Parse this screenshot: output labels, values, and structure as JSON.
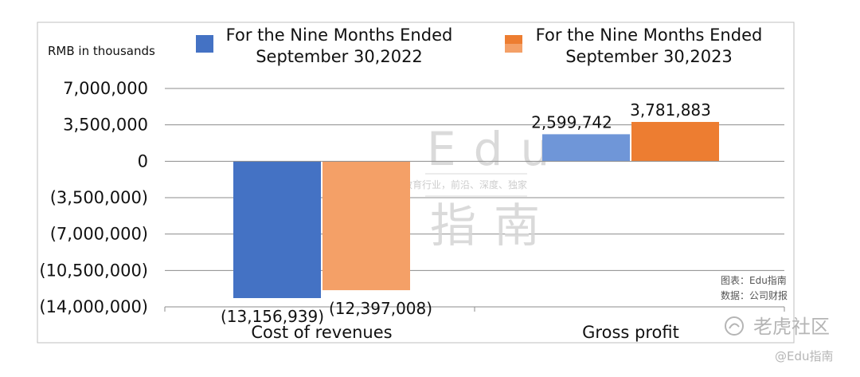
{
  "chart_data": {
    "type": "bar",
    "unit_label": "RMB in thousands",
    "categories": [
      "Cost of revenues",
      "Gross profit"
    ],
    "series": [
      {
        "name": "For the Nine Months Ended September 30,2022",
        "name_lines": [
          "For the Nine Months Ended",
          "September 30,2022"
        ],
        "color": "#4472c4",
        "values": [
          -13156939,
          2599742
        ],
        "labels": [
          "(13,156,939)",
          "2,599,742"
        ]
      },
      {
        "name": "For the Nine Months Ended September 30,2023",
        "name_lines": [
          "For the Nine Months Ended",
          "September 30,2023"
        ],
        "color": "#ed7d31",
        "values": [
          -12397008,
          3781883
        ],
        "labels": [
          "(12,397,008)",
          "3,781,883"
        ]
      }
    ],
    "cost_colors": [
      "#4472c4",
      "#f4a067"
    ],
    "profit_colors": [
      "#6f96d8",
      "#ed7d31"
    ],
    "ylim": [
      -14000000,
      7000000
    ],
    "yticks": [
      7000000,
      3500000,
      0,
      -3500000,
      -7000000,
      -10500000,
      -14000000
    ],
    "ytick_labels": [
      "7,000,000",
      "3,500,000",
      "0",
      "(3,500,000)",
      "(7,000,000)",
      "(10,500,000)",
      "(14,000,000)"
    ],
    "grid": true,
    "legend": "top"
  },
  "watermark": {
    "big_top": "Edu",
    "small": "教育行业，前沿、深度、独家",
    "big_bottom": "指南"
  },
  "source_note": {
    "line1": "图表：Edu指南",
    "line2": "数据：公司财报"
  },
  "brand": {
    "name": "老虎社区",
    "handle": "@Edu指南"
  }
}
